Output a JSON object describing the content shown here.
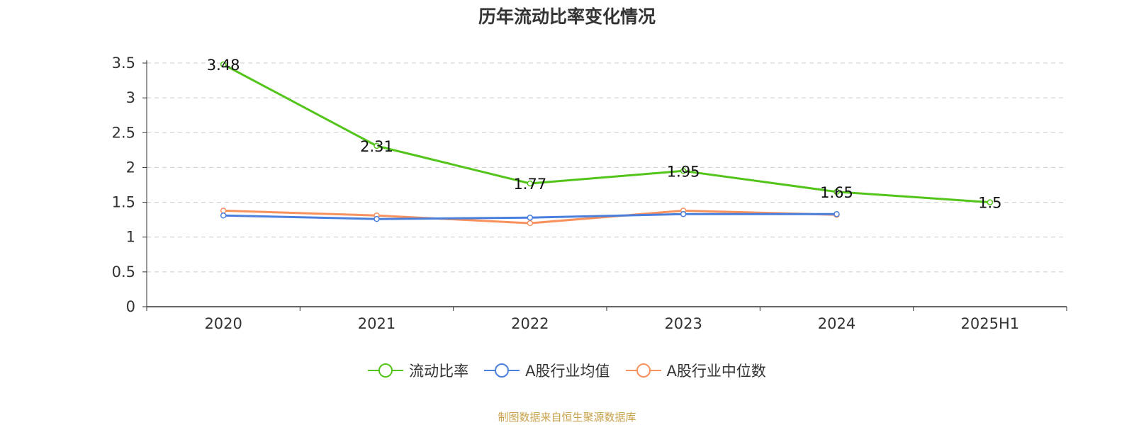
{
  "chart_data": {
    "type": "line",
    "title": "历年流动比率变化情况",
    "categories": [
      "2020",
      "2021",
      "2022",
      "2023",
      "2024",
      "2025H1"
    ],
    "ylim": [
      0,
      3.5
    ],
    "yticks": [
      "0",
      "0.5",
      "1",
      "1.5",
      "2",
      "2.5",
      "3",
      "3.5"
    ],
    "grid": true,
    "legend_position": "bottom",
    "series": [
      {
        "name": "流动比率",
        "color": "#52c41a",
        "values": [
          3.48,
          2.31,
          1.77,
          1.95,
          1.65,
          1.5
        ],
        "labels": [
          "3.48",
          "2.31",
          "1.77",
          "1.95",
          "1.65",
          "1.5"
        ]
      },
      {
        "name": "A股行业均值",
        "color": "#4a7fdc",
        "values": [
          1.31,
          1.26,
          1.28,
          1.33,
          1.33,
          null
        ]
      },
      {
        "name": "A股行业中位数",
        "color": "#f7915e",
        "values": [
          1.38,
          1.31,
          1.2,
          1.38,
          1.32,
          null
        ]
      }
    ]
  },
  "source_note": "制图数据来自恒生聚源数据库"
}
